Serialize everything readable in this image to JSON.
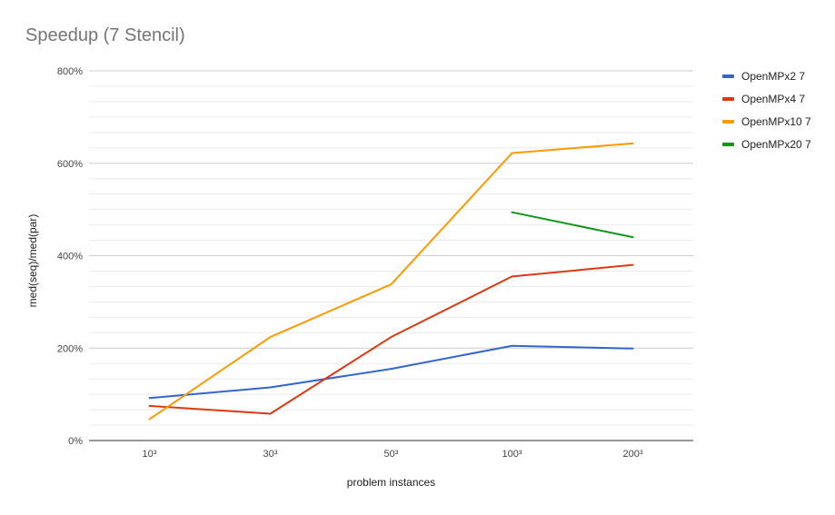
{
  "chart_data": {
    "type": "line",
    "title": "Speedup (7 Stencil)",
    "xlabel": "problem instances",
    "ylabel": "med(seq)/med(par)",
    "categories": [
      "10³",
      "30³",
      "50³",
      "100³",
      "200³"
    ],
    "ylim": [
      0,
      800
    ],
    "y_ticks": [
      0,
      200,
      400,
      600,
      800
    ],
    "y_tick_labels": [
      "0%",
      "200%",
      "400%",
      "600%",
      "800%"
    ],
    "grid": true,
    "legend_position": "right",
    "series": [
      {
        "name": "OpenMPx2 7",
        "color": "#3366cc",
        "values": [
          92,
          115,
          155,
          205,
          199
        ]
      },
      {
        "name": "OpenMPx4 7",
        "color": "#dc3912",
        "values": [
          75,
          58,
          224,
          355,
          380
        ]
      },
      {
        "name": "OpenMPx10 7",
        "color": "#ff9900",
        "values": [
          46,
          224,
          338,
          622,
          643
        ]
      },
      {
        "name": "OpenMPx20 7",
        "color": "#109618",
        "values": [
          null,
          null,
          null,
          494,
          440
        ]
      }
    ]
  }
}
